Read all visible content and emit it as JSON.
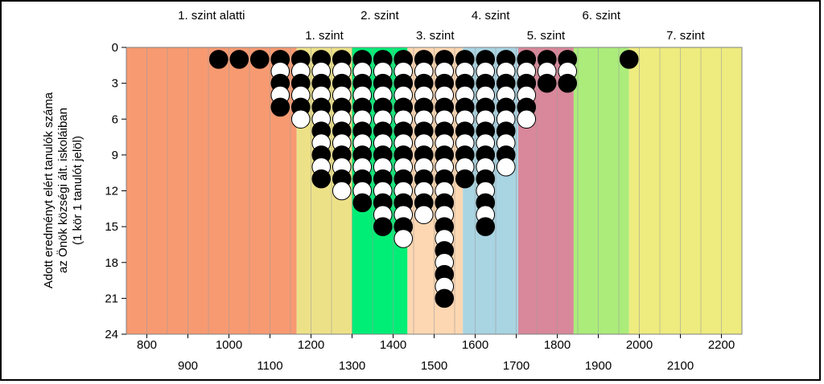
{
  "chart_data": {
    "type": "scatter",
    "ylabel": "Adott eredményt elért tanulók száma az Önök községi ált. iskoláiban (1 kör 1 tanulót jelöl)",
    "ylabel_lines": [
      "Adott eredményt elért tanulók száma",
      "az Önök községi ált. iskoláiban",
      "(1 kör 1 tanulót jelöl)"
    ],
    "xlim": [
      750,
      2250
    ],
    "ylim": [
      0,
      24
    ],
    "y_inverted": true,
    "x_ticks_upper": [
      800,
      1000,
      1200,
      1400,
      1600,
      1800,
      2000,
      2200
    ],
    "x_ticks_lower": [
      900,
      1100,
      1300,
      1500,
      1700,
      1900,
      2100
    ],
    "y_ticks": [
      0,
      3,
      6,
      9,
      12,
      15,
      18,
      21,
      24
    ],
    "grid_step": 50,
    "bands": [
      {
        "label": "1. szint alatti",
        "from": 750,
        "to": 1165,
        "color": "#F79A72",
        "row": "top"
      },
      {
        "label": "1. szint",
        "from": 1165,
        "to": 1300,
        "color": "#EDE188",
        "row": "bottom"
      },
      {
        "label": "2. szint",
        "from": 1300,
        "to": 1435,
        "color": "#00EE76",
        "row": "top"
      },
      {
        "label": "3. szint",
        "from": 1435,
        "to": 1570,
        "color": "#FDD7B1",
        "row": "bottom"
      },
      {
        "label": "4. szint",
        "from": 1570,
        "to": 1705,
        "color": "#A9D4E2",
        "row": "top"
      },
      {
        "label": "5. szint",
        "from": 1705,
        "to": 1840,
        "color": "#D9879A",
        "row": "bottom"
      },
      {
        "label": "6. szint",
        "from": 1840,
        "to": 1975,
        "color": "#ABEC7B",
        "row": "top"
      },
      {
        "label": "7. szint",
        "from": 1975,
        "to": 2250,
        "color": "#EEEB7F",
        "row": "bottom"
      }
    ],
    "columns": [
      {
        "x": 975,
        "count": 1
      },
      {
        "x": 1025,
        "count": 1
      },
      {
        "x": 1075,
        "count": 1
      },
      {
        "x": 1125,
        "count": 5
      },
      {
        "x": 1175,
        "count": 6
      },
      {
        "x": 1225,
        "count": 11
      },
      {
        "x": 1275,
        "count": 12
      },
      {
        "x": 1325,
        "count": 13
      },
      {
        "x": 1375,
        "count": 15
      },
      {
        "x": 1425,
        "count": 16
      },
      {
        "x": 1475,
        "count": 14
      },
      {
        "x": 1525,
        "count": 21
      },
      {
        "x": 1575,
        "count": 11
      },
      {
        "x": 1625,
        "count": 15
      },
      {
        "x": 1675,
        "count": 10
      },
      {
        "x": 1725,
        "count": 6
      },
      {
        "x": 1775,
        "count": 3
      },
      {
        "x": 1825,
        "count": 3
      },
      {
        "x": 1975,
        "count": 1
      }
    ],
    "marker_colors": [
      "#000000",
      "#ffffff"
    ]
  }
}
